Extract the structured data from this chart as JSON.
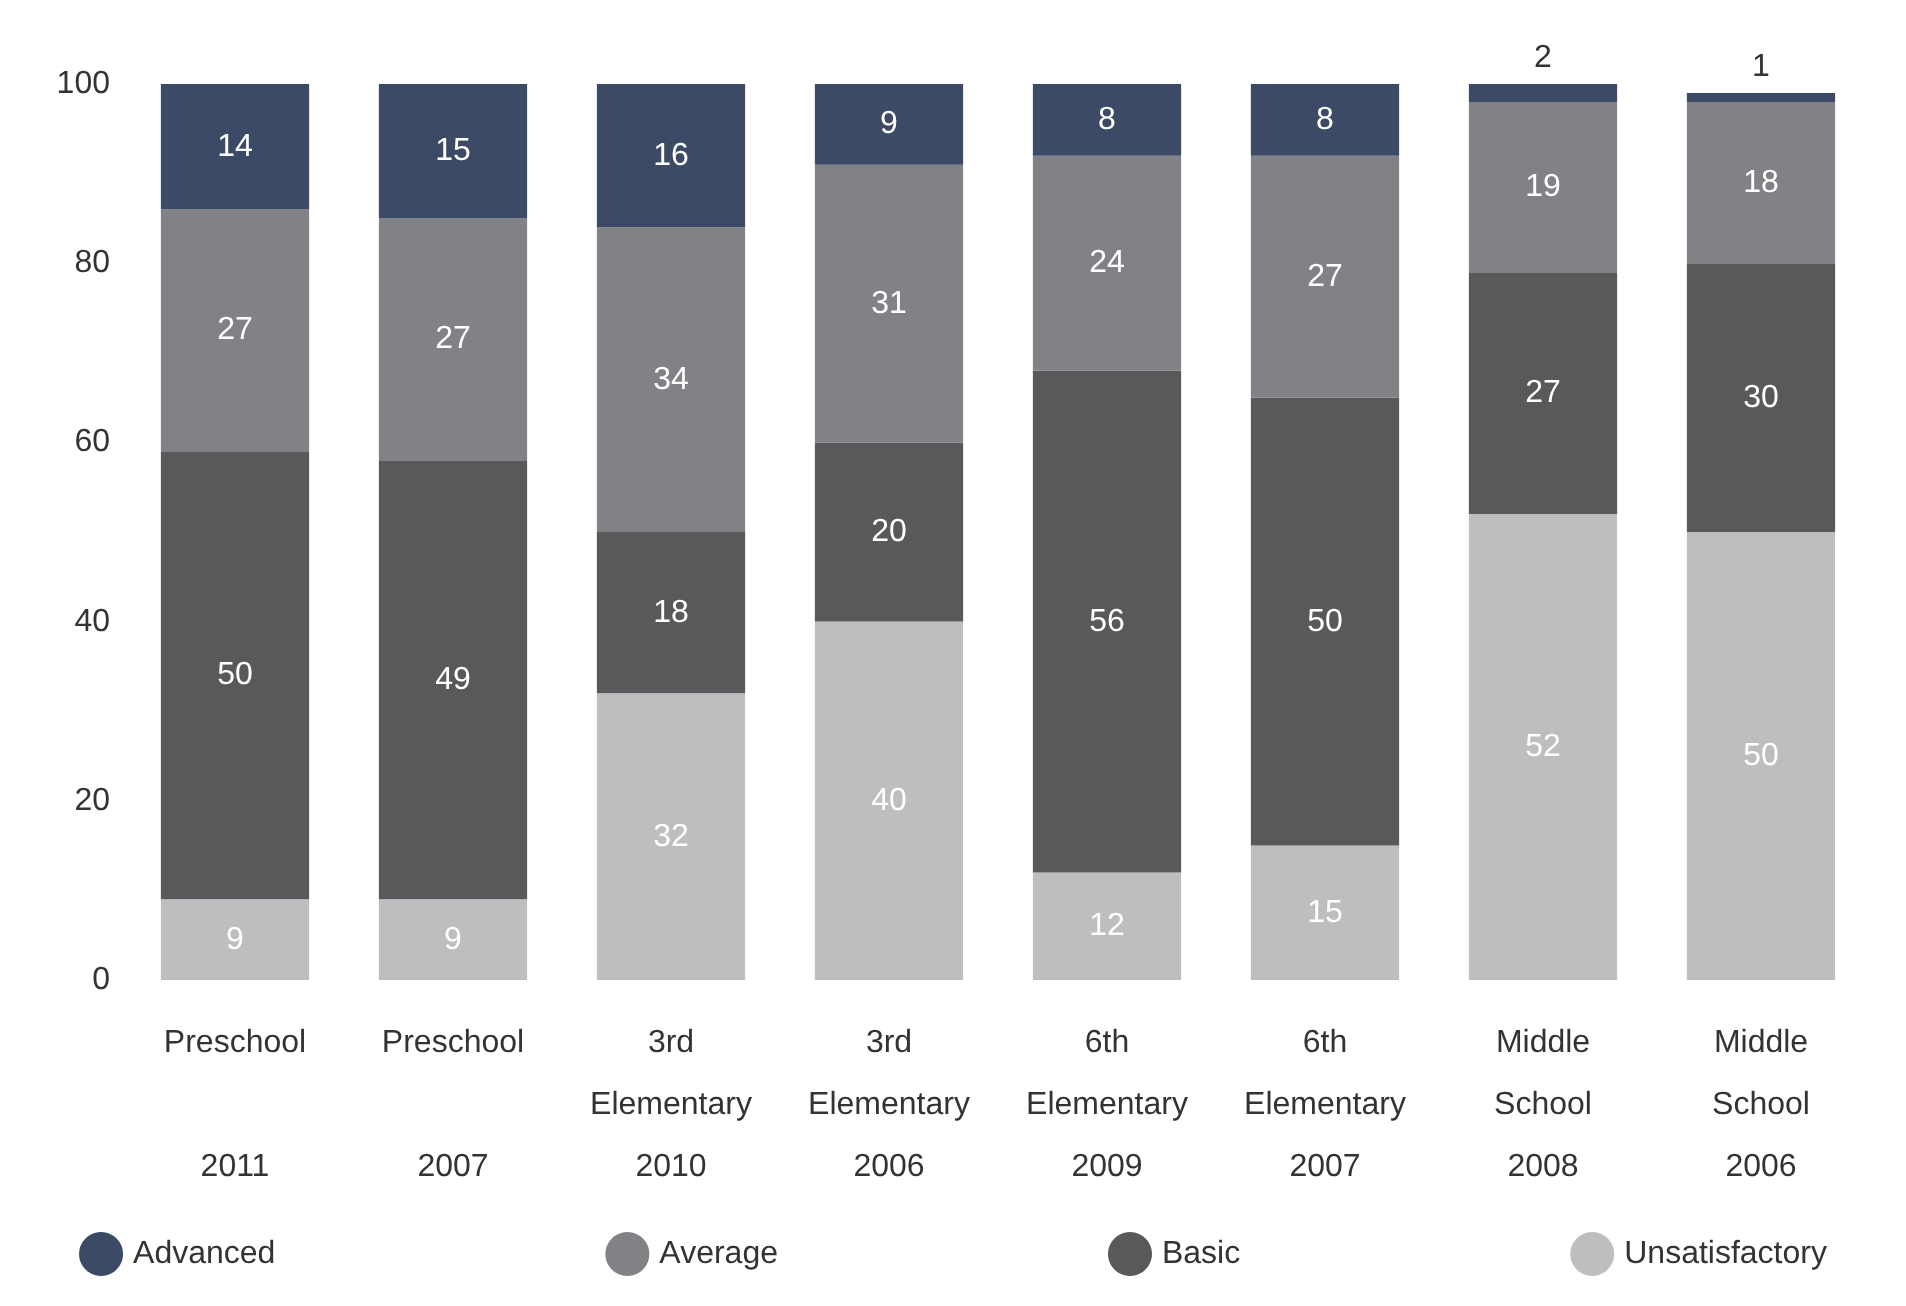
{
  "chart_data": {
    "type": "bar",
    "stacked": true,
    "data_labels": true,
    "legend": "bottom",
    "grid": false,
    "categories": [
      "Preschool\n\n2011",
      "Preschool\n\n2007",
      "3rd\nElementary\n2010",
      "3rd\nElementary\n2006",
      "6th\nElementary\n2009",
      "6th\nElementary\n2007",
      "Middle\nSchool\n2008",
      "Middle\nSchool\n2006"
    ],
    "ylim": [
      0,
      100
    ],
    "yticks": [
      0,
      20,
      40,
      60,
      80,
      100
    ],
    "series": [
      {
        "name": "Unsatisfactory",
        "color": "#bcbec0",
        "values": [
          9,
          9,
          32,
          40,
          12,
          15,
          52,
          50
        ]
      },
      {
        "name": "Basic",
        "color": "#58595b",
        "values": [
          50,
          49,
          18,
          20,
          56,
          50,
          27,
          30
        ]
      },
      {
        "name": "Average",
        "color": "#808285",
        "values": [
          27,
          27,
          34,
          31,
          24,
          27,
          19,
          18
        ]
      },
      {
        "name": "Advanced",
        "color": "#3d4a66",
        "values": [
          14,
          15,
          16,
          9,
          8,
          8,
          2,
          1
        ]
      }
    ]
  }
}
